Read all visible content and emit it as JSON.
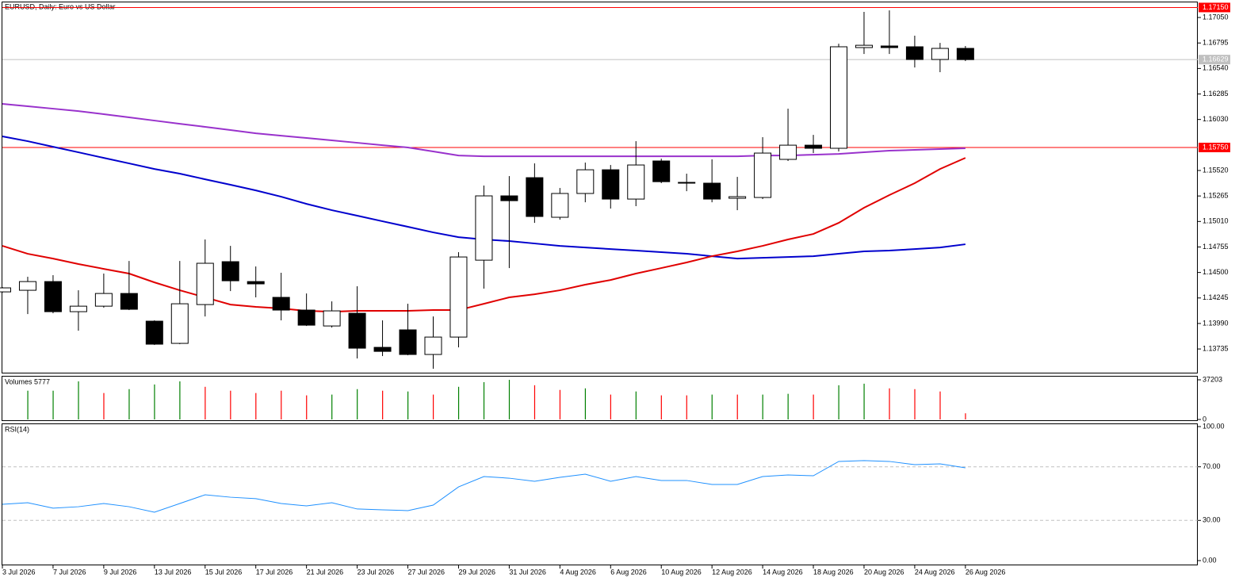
{
  "chart_data": [
    {
      "type": "candlestick",
      "title": "EURUSD, Daily: Euro vs US Dollar",
      "categories": [
        "3 Jul 2026",
        null,
        "7 Jul 2026",
        null,
        "9 Jul 2026",
        null,
        "13 Jul 2026",
        null,
        "15 Jul 2026",
        null,
        "17 Jul 2026",
        null,
        "21 Jul 2026",
        null,
        "23 Jul 2026",
        null,
        "27 Jul 2026",
        null,
        "29 Jul 2026",
        null,
        "31 Jul 2026",
        null,
        "4 Aug 2026",
        null,
        "6 Aug 2026",
        null,
        "10 Aug 2026",
        null,
        "12 Aug 2026",
        null,
        "14 Aug 2026",
        null,
        "18 Aug 2026",
        null,
        "20 Aug 2026",
        null,
        "24 Aug 2026",
        null,
        "26 Aug 2026"
      ],
      "open": [
        1.14306,
        1.14322,
        1.14409,
        1.14108,
        1.14163,
        1.1429,
        1.14013,
        1.13791,
        1.14179,
        1.14608,
        1.14409,
        1.14251,
        1.14124,
        1.13965,
        1.14092,
        1.13751,
        1.13926,
        1.1368,
        1.13854,
        1.14623,
        1.15266,
        1.15448,
        1.15052,
        1.1529,
        1.15527,
        1.15234,
        1.15615,
        1.15401,
        1.15393,
        1.15242,
        1.1525,
        1.15631,
        1.15773,
        1.15742,
        1.16749,
        1.16765,
        1.16757,
        1.1663,
        1.16741
      ],
      "high": [
        1.14354,
        1.14457,
        1.14473,
        1.14322,
        1.14489,
        1.14615,
        1.14021,
        1.14615,
        1.1483,
        1.14766,
        1.1456,
        1.14497,
        1.1429,
        1.14211,
        1.14362,
        1.14021,
        1.14187,
        1.1406,
        1.14703,
        1.15369,
        1.15464,
        1.15591,
        1.15345,
        1.15599,
        1.15575,
        1.15813,
        1.15638,
        1.15488,
        1.15631,
        1.15456,
        1.15853,
        1.16138,
        1.15876,
        1.16788,
        1.17106,
        1.17121,
        1.16868,
        1.16796,
        1.16765
      ],
      "low": [
        1.14298,
        1.14084,
        1.14092,
        1.13918,
        1.14148,
        1.14124,
        1.13775,
        1.13783,
        1.1406,
        1.14314,
        1.14251,
        1.14021,
        1.13965,
        1.13949,
        1.1364,
        1.13664,
        1.13672,
        1.13537,
        1.13751,
        1.14338,
        1.14544,
        1.14996,
        1.15028,
        1.15202,
        1.15139,
        1.15163,
        1.15393,
        1.15313,
        1.15202,
        1.15123,
        1.15234,
        1.15615,
        1.15694,
        1.1571,
        1.16685,
        1.16685,
        1.1655,
        1.16503,
        1.16614
      ],
      "close": [
        1.14346,
        1.14409,
        1.14108,
        1.14163,
        1.1429,
        1.14132,
        1.13783,
        1.14187,
        1.14592,
        1.14417,
        1.14386,
        1.14124,
        1.13973,
        1.14116,
        1.13743,
        1.13711,
        1.1368,
        1.13854,
        1.14655,
        1.15266,
        1.15218,
        1.1506,
        1.1529,
        1.15527,
        1.15234,
        1.15575,
        1.15408,
        1.15393,
        1.15234,
        1.15258,
        1.15694,
        1.15773,
        1.15742,
        1.16757,
        1.16772,
        1.16749,
        1.1663,
        1.16741,
        1.16629
      ],
      "up_color": "#ffffff",
      "down_color": "#000000",
      "lines": [
        {
          "color": "#9932cc",
          "values": [
            1.16186,
            1.16162,
            1.16138,
            1.16114,
            1.16083,
            1.16051,
            1.16019,
            1.15987,
            1.15956,
            1.15924,
            1.15892,
            1.15868,
            1.15845,
            1.15821,
            1.15797,
            1.15773,
            1.1575,
            1.1571,
            1.1567,
            1.15662,
            1.15662,
            1.15662,
            1.15662,
            1.15662,
            1.15662,
            1.15662,
            1.15662,
            1.15662,
            1.15662,
            1.15662,
            1.1567,
            1.1567,
            1.15678,
            1.15686,
            1.15702,
            1.15718,
            1.15726,
            1.15734,
            1.15742
          ]
        },
        {
          "color": "#0000cd",
          "values": [
            1.15861,
            1.15813,
            1.15757,
            1.15702,
            1.15646,
            1.15591,
            1.15535,
            1.15488,
            1.15432,
            1.15377,
            1.15321,
            1.15258,
            1.15186,
            1.15123,
            1.15068,
            1.15012,
            1.14957,
            1.14901,
            1.14853,
            1.1483,
            1.14814,
            1.1479,
            1.14766,
            1.1475,
            1.14734,
            1.14719,
            1.14703,
            1.14687,
            1.14663,
            1.14639,
            1.14647,
            1.14655,
            1.14663,
            1.14687,
            1.14711,
            1.14719,
            1.14734,
            1.1475,
            1.14782
          ]
        },
        {
          "color": "#e00000",
          "values": [
            1.14766,
            1.14687,
            1.14639,
            1.14584,
            1.14536,
            1.14489,
            1.14401,
            1.14322,
            1.14251,
            1.14179,
            1.14156,
            1.1414,
            1.14116,
            1.14108,
            1.14116,
            1.14116,
            1.14116,
            1.14124,
            1.14124,
            1.14187,
            1.14251,
            1.14282,
            1.14322,
            1.14378,
            1.14425,
            1.14489,
            1.14544,
            1.146,
            1.14663,
            1.14711,
            1.14766,
            1.1483,
            1.14885,
            1.14996,
            1.15147,
            1.15274,
            1.15393,
            1.15535,
            1.15646
          ]
        }
      ],
      "hlines": [
        {
          "value": 1.1715,
          "label": "1.17150",
          "color": "#ff0000"
        },
        {
          "value": 1.16629,
          "label": "1.16629",
          "color": "#c0c0c0"
        },
        {
          "value": 1.1575,
          "label": "1.15750",
          "color": "#ff0000"
        }
      ],
      "ylim": [
        1.1349,
        1.17209
      ],
      "yticks": [
        {
          "value": 1.1705,
          "label": "1.17050"
        },
        1.16795,
        {
          "value": 1.1654,
          "label": "1.16540"
        },
        1.16285,
        {
          "value": 1.1603,
          "label": "1.16030"
        },
        {
          "value": 1.1552,
          "label": "1.15520"
        },
        1.15265,
        {
          "value": 1.1501,
          "label": "1.15010"
        },
        1.14755,
        {
          "value": 1.145,
          "label": "1.14500"
        },
        1.14245,
        {
          "value": 1.1399,
          "label": "1.13990"
        },
        1.13735
      ]
    },
    {
      "type": "bar",
      "title": "Volumes 5777",
      "values": [
        null,
        26990,
        26990,
        35745,
        24803,
        28450,
        32827,
        35745,
        30638,
        26990,
        24803,
        26990,
        22614,
        23343,
        28450,
        26990,
        26261,
        23343,
        30638,
        35015,
        37203,
        32097,
        27720,
        29180,
        23343,
        26261,
        22614,
        22614,
        23343,
        23343,
        23343,
        24074,
        23343,
        32097,
        33557,
        29180,
        28450,
        26261,
        5777
      ],
      "colors": [
        null,
        "#008000",
        "#008000",
        "#008000",
        "#ff0000",
        "#008000",
        "#008000",
        "#008000",
        "#ff0000",
        "#ff0000",
        "#ff0000",
        "#ff0000",
        "#ff0000",
        "#008000",
        "#008000",
        "#ff0000",
        "#008000",
        "#ff0000",
        "#008000",
        "#008000",
        "#008000",
        "#ff0000",
        "#ff0000",
        "#008000",
        "#ff0000",
        "#008000",
        "#ff0000",
        "#ff0000",
        "#008000",
        "#ff0000",
        "#008000",
        "#008000",
        "#ff0000",
        "#008000",
        "#008000",
        "#ff0000",
        "#ff0000",
        "#ff0000",
        "#ff0000"
      ],
      "ylim": [
        0,
        37203
      ],
      "yticks": [
        37203,
        0
      ]
    },
    {
      "type": "line",
      "title": "RSI(14)",
      "color": "#1e90ff",
      "values": [
        42.0,
        43.2,
        39.1,
        40.2,
        42.6,
        40.2,
        36.1,
        42.6,
        49.1,
        47.3,
        46.2,
        42.6,
        40.8,
        43.2,
        38.5,
        37.9,
        37.3,
        41.4,
        55.0,
        62.7,
        61.5,
        59.2,
        62.1,
        64.5,
        59.2,
        62.7,
        59.8,
        59.8,
        56.8,
        56.8,
        62.7,
        63.9,
        63.3,
        74.0,
        74.6,
        74.0,
        71.6,
        72.2,
        69.2
      ],
      "ylim": [
        0,
        100
      ],
      "yticks": [
        {
          "value": 100,
          "label": "100.00"
        },
        {
          "value": 70,
          "label": "70.00"
        },
        {
          "value": 30,
          "label": "30.00"
        },
        {
          "value": 0,
          "label": "0.00"
        }
      ],
      "levels": [
        30,
        70
      ]
    }
  ]
}
